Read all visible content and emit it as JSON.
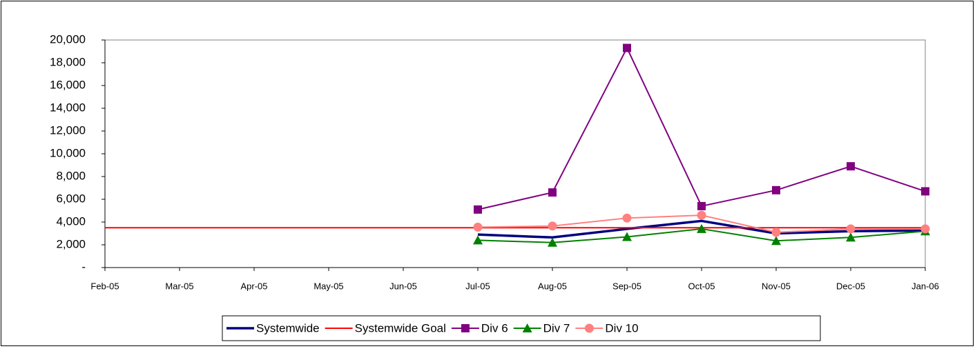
{
  "chart_data": {
    "type": "line",
    "categories": [
      "Feb-05",
      "Mar-05",
      "Apr-05",
      "May-05",
      "Jun-05",
      "Jul-05",
      "Aug-05",
      "Sep-05",
      "Oct-05",
      "Nov-05",
      "Dec-05",
      "Jan-06"
    ],
    "series": [
      {
        "name": "Systemwide",
        "color": "#000080",
        "marker": "none",
        "values": [
          null,
          null,
          null,
          null,
          null,
          2900,
          2650,
          3400,
          4100,
          3000,
          3200,
          3250
        ]
      },
      {
        "name": "Systemwide Goal",
        "color": "#ff0000",
        "marker": "none",
        "values": [
          3500,
          3500,
          3500,
          3500,
          3500,
          3500,
          3500,
          3500,
          3500,
          3500,
          3500,
          3500
        ]
      },
      {
        "name": "Div 6",
        "color": "#800080",
        "marker": "square",
        "values": [
          null,
          null,
          null,
          null,
          null,
          5100,
          6600,
          19300,
          5400,
          6800,
          8900,
          6700
        ]
      },
      {
        "name": "Div 7",
        "color": "#008000",
        "marker": "triangle",
        "values": [
          null,
          null,
          null,
          null,
          null,
          2400,
          2200,
          2700,
          3400,
          2350,
          2650,
          3200
        ]
      },
      {
        "name": "Div 10",
        "color": "#ff8080",
        "marker": "circle",
        "values": [
          null,
          null,
          null,
          null,
          null,
          3550,
          3650,
          4350,
          4600,
          3100,
          3400,
          3400
        ]
      }
    ],
    "ylim": [
      0,
      20000
    ],
    "yticks": [
      {
        "value": 0,
        "label": "-"
      },
      {
        "value": 2000,
        "label": "2,000"
      },
      {
        "value": 4000,
        "label": "4,000"
      },
      {
        "value": 6000,
        "label": "6,000"
      },
      {
        "value": 8000,
        "label": "8,000"
      },
      {
        "value": 10000,
        "label": "10,000"
      },
      {
        "value": 12000,
        "label": "12,000"
      },
      {
        "value": 14000,
        "label": "14,000"
      },
      {
        "value": 16000,
        "label": "16,000"
      },
      {
        "value": 18000,
        "label": "18,000"
      },
      {
        "value": 20000,
        "label": "20,000"
      }
    ],
    "grid": false,
    "legend": "bottom"
  }
}
